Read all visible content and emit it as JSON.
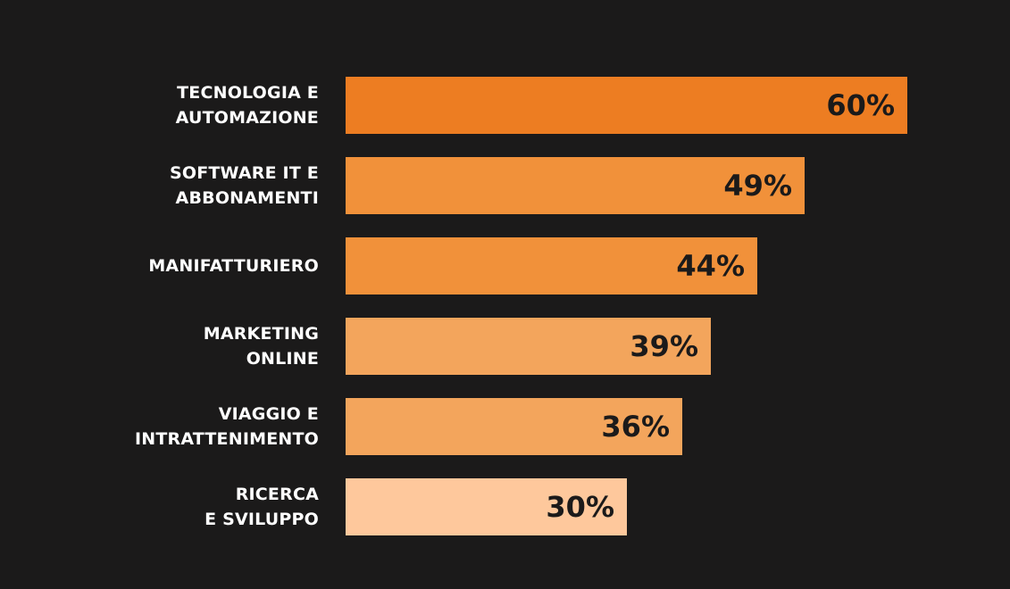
{
  "chart_data": {
    "type": "bar",
    "orientation": "horizontal",
    "categories": [
      "TECNOLOGIA E\nAUTOMAZIONE",
      "SOFTWARE IT E\nABBONAMENTI",
      "MANIFATTURIERO",
      "MARKETING\nONLINE",
      "VIAGGIO E\nINTRATTENIMENTO",
      "RICERCA\nE SVILUPPO"
    ],
    "values": [
      60,
      49,
      44,
      39,
      36,
      30
    ],
    "value_labels": [
      "60%",
      "49%",
      "44%",
      "39%",
      "36%",
      "30%"
    ],
    "bar_colors": [
      "#ed7d22",
      "#f1913a",
      "#f1913a",
      "#f3a55c",
      "#f3a55c",
      "#fec89c"
    ],
    "xlim": [
      0,
      60
    ],
    "grid": false,
    "legend": "none",
    "background_color": "#1b1a1a",
    "label_color": "#ffffff",
    "value_text_color": "#1b1a1a"
  }
}
